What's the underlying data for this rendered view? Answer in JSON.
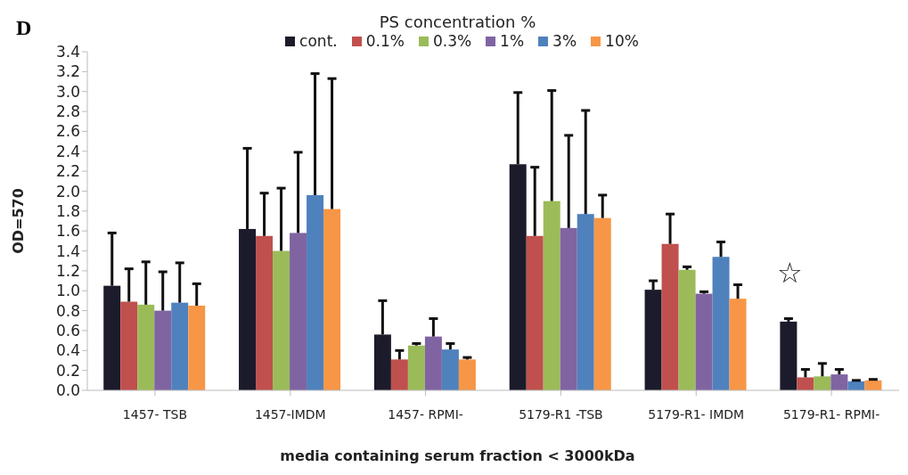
{
  "chart_data": {
    "type": "bar",
    "title": "PS concentration %",
    "xlabel": "media containing serum fraction < 3000kDa",
    "ylabel": "OD=570",
    "categories": [
      "1457- TSB",
      "1457-IMDM",
      "1457- RPMI-",
      "5179-R1 -TSB",
      "5179-R1- IMDM",
      "5179-R1- RPMI-"
    ],
    "series": [
      {
        "name": "cont.",
        "color": "#1b1b2b",
        "values": [
          1.05,
          1.62,
          0.56,
          2.27,
          1.01,
          0.69
        ],
        "errors": [
          [
            1.05,
            1.58
          ],
          [
            1.62,
            2.43
          ],
          [
            0.56,
            0.9
          ],
          [
            2.27,
            2.99
          ],
          [
            1.01,
            1.1
          ],
          [
            0.69,
            0.72
          ]
        ]
      },
      {
        "name": "0.1%",
        "color": "#c0504d",
        "values": [
          0.89,
          1.55,
          0.31,
          1.55,
          1.47,
          0.13
        ],
        "errors": [
          [
            0.89,
            1.22
          ],
          [
            1.55,
            1.98
          ],
          [
            0.31,
            0.4
          ],
          [
            1.55,
            2.24
          ],
          [
            1.47,
            1.77
          ],
          [
            0.13,
            0.21
          ]
        ]
      },
      {
        "name": "0.3%",
        "color": "#9bbb59",
        "values": [
          0.86,
          1.4,
          0.45,
          1.9,
          1.21,
          0.14
        ],
        "errors": [
          [
            0.86,
            1.29
          ],
          [
            1.4,
            2.03
          ],
          [
            0.45,
            0.47
          ],
          [
            1.9,
            3.01
          ],
          [
            1.21,
            1.24
          ],
          [
            0.14,
            0.27
          ]
        ]
      },
      {
        "name": "1%",
        "color": "#8064a2",
        "values": [
          0.8,
          1.58,
          0.54,
          1.63,
          0.97,
          0.16
        ],
        "errors": [
          [
            0.8,
            1.19
          ],
          [
            1.58,
            2.39
          ],
          [
            0.54,
            0.72
          ],
          [
            1.63,
            2.56
          ],
          [
            0.97,
            0.99
          ],
          [
            0.16,
            0.21
          ]
        ]
      },
      {
        "name": "3%",
        "color": "#4f81bd",
        "values": [
          0.88,
          1.96,
          0.41,
          1.77,
          1.34,
          0.09
        ],
        "errors": [
          [
            0.88,
            1.28
          ],
          [
            1.96,
            3.18
          ],
          [
            0.41,
            0.47
          ],
          [
            1.77,
            2.81
          ],
          [
            1.34,
            1.49
          ],
          [
            0.09,
            0.1
          ]
        ]
      },
      {
        "name": "10%",
        "color": "#f79646",
        "values": [
          0.85,
          1.82,
          0.31,
          1.73,
          0.92,
          0.1
        ],
        "errors": [
          [
            0.85,
            1.07
          ],
          [
            1.82,
            3.13
          ],
          [
            0.31,
            0.33
          ],
          [
            1.73,
            1.96
          ],
          [
            0.92,
            1.06
          ],
          [
            0.1,
            0.11
          ]
        ]
      }
    ],
    "ylim": [
      0,
      3.4
    ],
    "yticks": [
      {
        "value": 0,
        "label": "0.0"
      },
      0.2,
      0.4,
      0.6,
      0.8,
      {
        "value": 1,
        "label": "1.0"
      },
      1.2,
      1.4,
      1.6,
      1.8,
      {
        "value": 2,
        "label": "2.0"
      },
      2.2,
      2.4,
      2.6,
      2.8,
      {
        "value": 3,
        "label": "3.0"
      },
      3.2,
      3.4
    ],
    "grid": false,
    "legend": "top",
    "annotations": [
      "D",
      "☆"
    ]
  }
}
